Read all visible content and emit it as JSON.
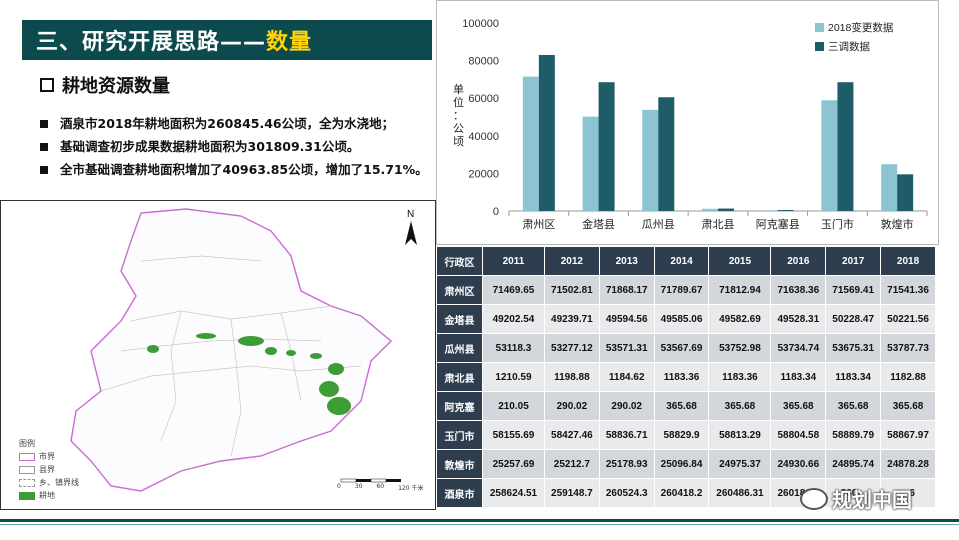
{
  "header": {
    "title_prefix": "三、研究开展思路——",
    "title_highlight": "数量"
  },
  "section": {
    "heading": "耕地资源数量",
    "bullets": [
      "酒泉市2018年耕地面积为260845.46公顷，全为水浇地；",
      "基础调查初步成果数据耕地面积为301809.31公顷。",
      "全市基础调查耕地面积增加了40963.85公顷，增加了15.71%。"
    ]
  },
  "map": {
    "north_label": "N",
    "legend_title": "图例",
    "legend_items": [
      "市界",
      "县界",
      "乡、镇界线",
      "耕地"
    ],
    "scale_labels": [
      "0",
      "30",
      "60",
      "120 千米"
    ],
    "colors": {
      "boundary": "#c86ccf",
      "farmland": "#3c9c35"
    }
  },
  "chart_data": {
    "type": "bar",
    "categories": [
      "肃州区",
      "金塔县",
      "瓜州县",
      "肃北县",
      "阿克塞县",
      "玉门市",
      "敦煌市"
    ],
    "series": [
      {
        "name": "2018变更数据",
        "values": [
          71500,
          50200,
          53800,
          1180,
          370,
          58900,
          24900
        ],
        "color": "#8cc4d2"
      },
      {
        "name": "三调数据",
        "values": [
          83000,
          68500,
          60500,
          1300,
          500,
          68500,
          19500
        ],
        "color": "#1e5d68"
      }
    ],
    "ylabel": "单位：公顷",
    "yticks": [
      0,
      20000,
      40000,
      60000,
      80000,
      100000
    ],
    "ylim": [
      0,
      100000
    ],
    "grid": false,
    "legend": "top-right"
  },
  "table": {
    "corner": "行政区",
    "years": [
      "2011",
      "2012",
      "2013",
      "2014",
      "2015",
      "2016",
      "2017",
      "2018"
    ],
    "rows": [
      {
        "name": "肃州区",
        "values": [
          "71469.65",
          "71502.81",
          "71868.17",
          "71789.67",
          "71812.94",
          "71638.36",
          "71569.41",
          "71541.36"
        ]
      },
      {
        "name": "金塔县",
        "values": [
          "49202.54",
          "49239.71",
          "49594.56",
          "49585.06",
          "49582.69",
          "49528.31",
          "50228.47",
          "50221.56"
        ]
      },
      {
        "name": "瓜州县",
        "values": [
          "53118.3",
          "53277.12",
          "53571.31",
          "53567.69",
          "53752.98",
          "53734.74",
          "53675.31",
          "53787.73"
        ]
      },
      {
        "name": "肃北县",
        "values": [
          "1210.59",
          "1198.88",
          "1184.62",
          "1183.36",
          "1183.36",
          "1183.34",
          "1183.34",
          "1182.88"
        ]
      },
      {
        "name": "阿克塞",
        "values": [
          "210.05",
          "290.02",
          "290.02",
          "365.68",
          "365.68",
          "365.68",
          "365.68",
          "365.68"
        ]
      },
      {
        "name": "玉门市",
        "values": [
          "58155.69",
          "58427.46",
          "58836.71",
          "58829.9",
          "58813.29",
          "58804.58",
          "58889.79",
          "58867.97"
        ]
      },
      {
        "name": "敦煌市",
        "values": [
          "25257.69",
          "25212.7",
          "25178.93",
          "25096.84",
          "24975.37",
          "24930.66",
          "24895.74",
          "24878.28"
        ]
      },
      {
        "name": "酒泉市",
        "values": [
          "258624.51",
          "259148.7",
          "260524.3",
          "260418.2",
          "260486.31",
          "260186.2",
          "260...",
          "...6"
        ]
      }
    ]
  },
  "watermark": "规划中国"
}
